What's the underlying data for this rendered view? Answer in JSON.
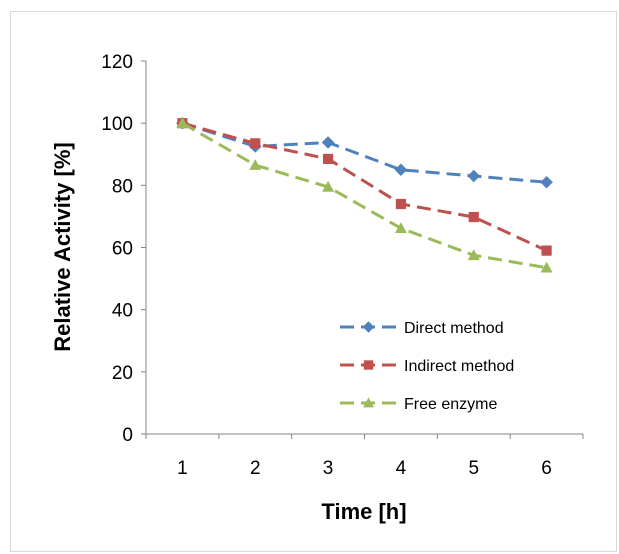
{
  "chart_data": {
    "type": "line",
    "x": [
      1,
      2,
      3,
      4,
      5,
      6
    ],
    "xlabel": "Time [h]",
    "ylabel": "Relative Activity [%]",
    "ylim": [
      0,
      120
    ],
    "yticks": [
      0,
      20,
      40,
      60,
      80,
      100,
      120
    ],
    "grid": false,
    "legend_position": "lower-right inside",
    "series": [
      {
        "name": "Direct method",
        "values": [
          100,
          92.5,
          93.8,
          85,
          83,
          81
        ],
        "color": "#4f81bd",
        "marker": "diamond",
        "line_style": "dashed"
      },
      {
        "name": "Indirect method",
        "values": [
          100,
          93.5,
          88.5,
          74,
          69.8,
          59
        ],
        "color": "#c0504d",
        "marker": "square",
        "line_style": "dashed"
      },
      {
        "name": "Free enzyme",
        "values": [
          100,
          86.5,
          79.5,
          66.2,
          57.5,
          53.5
        ],
        "color": "#9bbb59",
        "marker": "triangle",
        "line_style": "dashed"
      }
    ]
  }
}
